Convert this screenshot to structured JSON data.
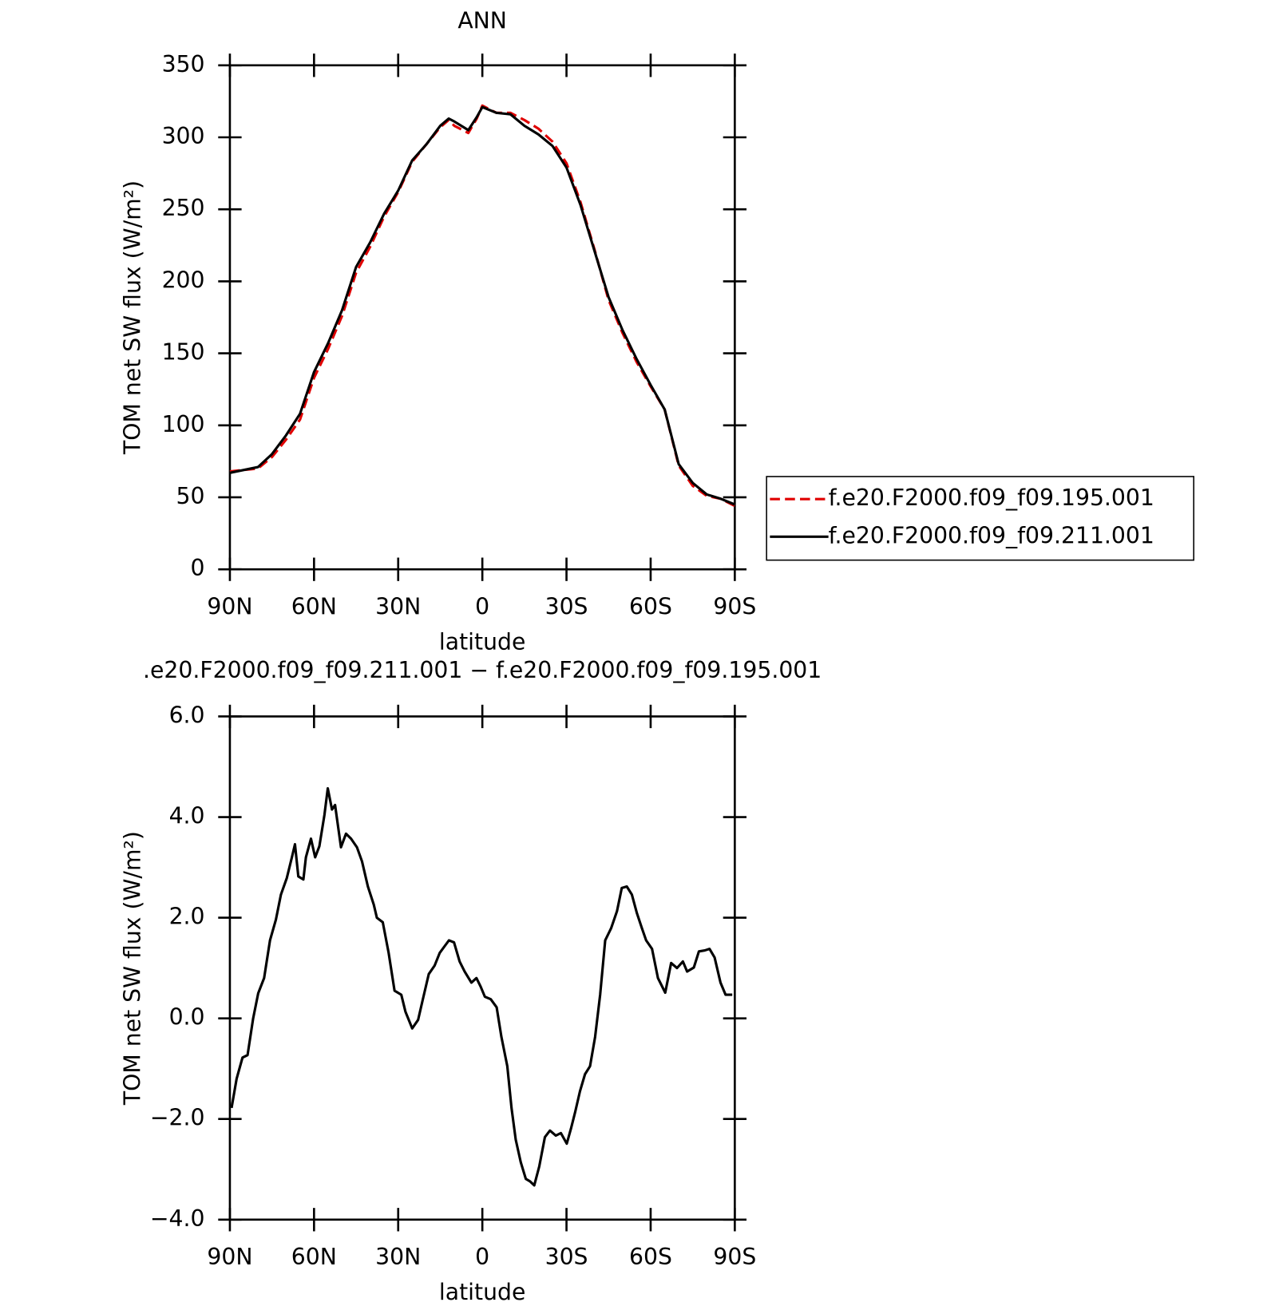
{
  "chart_data": [
    {
      "type": "line",
      "title": "ANN",
      "xlabel": "latitude",
      "ylabel": "TOM net SW flux (W/m²)",
      "x": [
        90,
        85,
        80,
        75,
        70,
        65,
        60,
        55,
        50,
        45,
        40,
        35,
        30,
        25,
        20,
        15,
        12,
        10,
        5,
        2,
        0,
        -5,
        -10,
        -15,
        -20,
        -25,
        -30,
        -35,
        -40,
        -45,
        -50,
        -55,
        -60,
        -65,
        -70,
        -75,
        -80,
        -85,
        -90
      ],
      "series": [
        {
          "name": "f.e20.F2000.f09_f09.195.001",
          "color": "#e00000",
          "dashed": true,
          "values": [
            68,
            69,
            70,
            78,
            90,
            104,
            133,
            153,
            176,
            206,
            224,
            245,
            262,
            283,
            295,
            307,
            312,
            308,
            303,
            313,
            322,
            317,
            317,
            312,
            306,
            297,
            282,
            255,
            222,
            187,
            164,
            144,
            127,
            111,
            72,
            58,
            51,
            49,
            44
          ]
        },
        {
          "name": "f.e20.F2000.f09_f09.211.001",
          "color": "#000000",
          "dashed": false,
          "values": [
            67,
            69,
            71,
            80,
            93,
            108,
            137,
            157,
            180,
            210,
            227,
            247,
            263,
            284,
            295,
            308,
            313,
            311,
            305,
            314,
            321,
            317,
            316,
            308,
            302,
            294,
            279,
            253,
            221,
            189,
            166,
            146,
            128,
            111,
            73,
            60,
            52,
            49,
            45
          ]
        }
      ],
      "xlim": [
        90,
        -90
      ],
      "xticks": [
        {
          "value": 90,
          "label": "90N"
        },
        {
          "value": 60,
          "label": "60N"
        },
        {
          "value": 30,
          "label": "30N"
        },
        0,
        {
          "value": -30,
          "label": "30S"
        },
        {
          "value": -60,
          "label": "60S"
        },
        {
          "value": -90,
          "label": "90S"
        }
      ],
      "ylim": [
        0,
        350
      ],
      "yticks": [
        0,
        50,
        100,
        150,
        200,
        250,
        300,
        350
      ],
      "legend": "right"
    },
    {
      "type": "line",
      "title": ".e20.F2000.f09_f09.211.001 − f.e20.F2000.f09_f09.195.001",
      "xlabel": "latitude",
      "ylabel": "TOM net SW flux (W/m²)",
      "x": [
        89.4,
        87.6,
        85.5,
        83.7,
        81.7,
        79.9,
        77.8,
        75.7,
        73.6,
        71.8,
        69.7,
        67.9,
        66.8,
        65.6,
        63.8,
        62.9,
        61.1,
        59.6,
        58.1,
        56.3,
        55.1,
        53.6,
        52.5,
        50.4,
        48.6,
        46.8,
        44.7,
        42.9,
        40.8,
        38.7,
        37.6,
        35.5,
        33.4,
        31.3,
        28.9,
        27.4,
        25.0,
        22.9,
        21.2,
        19.1,
        17.0,
        15.2,
        13.1,
        11.9,
        10.1,
        8.1,
        6.3,
        3.9,
        2.1,
        0.6,
        -0.9,
        -3.0,
        -5.1,
        -6.8,
        -8.9,
        -10.4,
        -11.9,
        -13.7,
        -15.5,
        -17.0,
        -18.5,
        -20.3,
        -22.3,
        -24.1,
        -26.2,
        -28.0,
        -30.1,
        -31.6,
        -33.1,
        -34.8,
        -36.6,
        -38.4,
        -40.2,
        -42.0,
        -43.8,
        -45.9,
        -48.0,
        -49.7,
        -51.5,
        -53.3,
        -55.1,
        -56.9,
        -58.4,
        -60.5,
        -62.6,
        -65.2,
        -67.3,
        -69.4,
        -71.5,
        -73.0,
        -75.4,
        -77.2,
        -79.3,
        -81.0,
        -82.8,
        -84.9,
        -86.7,
        -89.1
      ],
      "series": [
        {
          "color": "#000000",
          "dashed": false,
          "values": [
            -1.78,
            -1.2,
            -0.78,
            -0.73,
            0,
            0.5,
            0.8,
            1.55,
            1.96,
            2.46,
            2.79,
            3.2,
            3.46,
            2.82,
            2.76,
            3.2,
            3.57,
            3.2,
            3.42,
            4.04,
            4.57,
            4.15,
            4.24,
            3.4,
            3.67,
            3.57,
            3.4,
            3.12,
            2.62,
            2.26,
            2.0,
            1.91,
            1.3,
            0.55,
            0.47,
            0.13,
            -0.2,
            -0.03,
            0.38,
            0.88,
            1.05,
            1.3,
            1.46,
            1.55,
            1.51,
            1.13,
            0.93,
            0.71,
            0.8,
            0.63,
            0.43,
            0.38,
            0.22,
            -0.37,
            -0.95,
            -1.78,
            -2.41,
            -2.86,
            -3.19,
            -3.24,
            -3.32,
            -2.94,
            -2.36,
            -2.23,
            -2.33,
            -2.28,
            -2.49,
            -2.19,
            -1.86,
            -1.45,
            -1.11,
            -0.95,
            -0.37,
            0.47,
            1.55,
            1.79,
            2.13,
            2.59,
            2.62,
            2.46,
            2.09,
            1.79,
            1.55,
            1.38,
            0.8,
            0.51,
            1.1,
            1.0,
            1.13,
            0.93,
            1.01,
            1.33,
            1.35,
            1.38,
            1.21,
            0.71,
            0.47,
            0.47
          ]
        }
      ],
      "xlim": [
        90,
        -90
      ],
      "xticks": [
        {
          "value": 90,
          "label": "90N"
        },
        {
          "value": 60,
          "label": "60N"
        },
        {
          "value": 30,
          "label": "30N"
        },
        0,
        {
          "value": -30,
          "label": "30S"
        },
        {
          "value": -60,
          "label": "60S"
        },
        {
          "value": -90,
          "label": "90S"
        }
      ],
      "ylim": [
        -4,
        6
      ],
      "yticks": [
        {
          "value": -4,
          "label": "−4.0"
        },
        {
          "value": -2,
          "label": "−2.0"
        },
        {
          "value": 0,
          "label": "0.0"
        },
        {
          "value": 2,
          "label": "2.0"
        },
        {
          "value": 4,
          "label": "4.0"
        },
        {
          "value": 6,
          "label": "6.0"
        }
      ]
    }
  ]
}
